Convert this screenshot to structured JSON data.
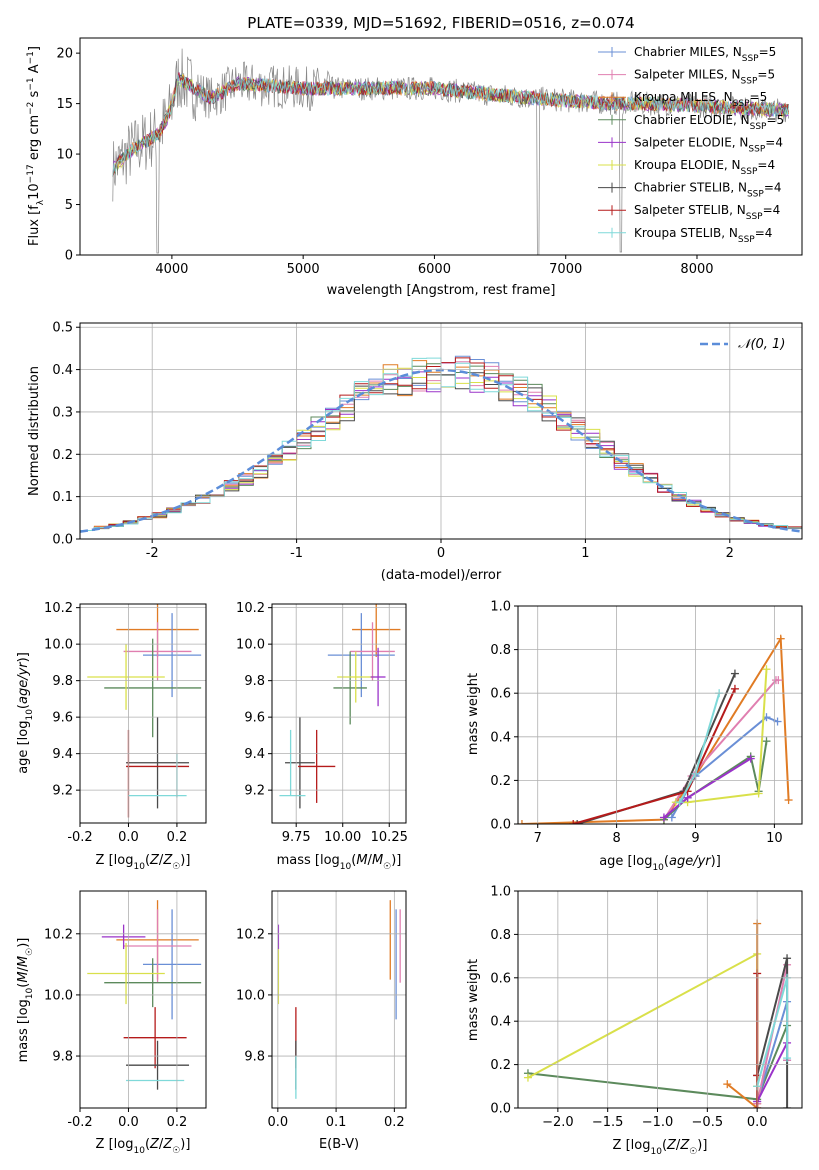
{
  "colors": {
    "Chabrier MILES": "#6a8fd6",
    "Salpeter MILES": "#e07fb0",
    "Kroupa MILES": "#e07b24",
    "Chabrier ELODIE": "#5c8a5c",
    "Salpeter ELODIE": "#9a33c9",
    "Kroupa ELODIE": "#d9e04a",
    "Chabrier STELIB": "#4a4a4a",
    "Salpeter STELIB": "#b51b1b",
    "Kroupa STELIB": "#7fd9d9"
  },
  "chart_data": [
    {
      "id": "spectrum",
      "type": "line",
      "title": "PLATE=0339, MJD=51692, FIBERID=0516, z=0.074",
      "xlabel": "wavelength [Angstrom, rest frame]",
      "ylabel": "Flux [fλ10⁻¹⁷ erg cm⁻² s⁻¹ A⁻¹]",
      "xlim": [
        3300,
        8800
      ],
      "ylim": [
        0,
        21.5
      ],
      "xticks": [
        4000,
        5000,
        6000,
        7000,
        8000
      ],
      "yticks": [
        0,
        5,
        10,
        15,
        20
      ],
      "data_color": "#888888",
      "series_names": [
        "Chabrier MILES, N_SSP=5",
        "Salpeter MILES, N_SSP=5",
        "Kroupa MILES, N_SSP=5",
        "Chabrier ELODIE, N_SSP=5",
        "Salpeter ELODIE, N_SSP=4",
        "Kroupa ELODIE, N_SSP=4",
        "Chabrier STELIB, N_SSP=4",
        "Salpeter STELIB, N_SSP=4",
        "Kroupa STELIB, N_SSP=4"
      ],
      "continuum": {
        "x": [
          3550,
          3700,
          3900,
          3980,
          4050,
          4300,
          4500,
          5000,
          5500,
          6000,
          6500,
          7000,
          7400,
          7600,
          8000,
          8400,
          8800
        ],
        "y": [
          8.5,
          10.5,
          12.0,
          14.0,
          17.5,
          15.5,
          17.0,
          16.5,
          16.5,
          16.5,
          15.8,
          15.3,
          15.0,
          15.0,
          14.8,
          14.5,
          14.3
        ]
      },
      "legend_location": "upper right"
    },
    {
      "id": "residuals",
      "type": "histogram",
      "xlabel": "(data-model)/error",
      "ylabel": "Normed distribution",
      "xlim": [
        -2.5,
        2.5
      ],
      "ylim": [
        0,
        0.51
      ],
      "xticks": [
        -2,
        -1,
        0,
        1,
        2
      ],
      "yticks": [
        0.0,
        0.1,
        0.2,
        0.3,
        0.4,
        0.5
      ],
      "grid": true,
      "reference_curve": "normal(0,1)",
      "legend": "𝒩(0, 1)",
      "envelope": {
        "x": [
          -2.5,
          -2.2,
          -1.9,
          -1.6,
          -1.3,
          -1.0,
          -0.7,
          -0.4,
          -0.1,
          0.2,
          0.5,
          0.8,
          1.1,
          1.4,
          1.7,
          2.0,
          2.3,
          2.5
        ],
        "y": [
          0.02,
          0.035,
          0.06,
          0.1,
          0.15,
          0.22,
          0.3,
          0.37,
          0.39,
          0.39,
          0.36,
          0.3,
          0.22,
          0.15,
          0.09,
          0.05,
          0.03,
          0.025
        ]
      }
    },
    {
      "id": "age-vs-Z",
      "type": "errorbar",
      "xlabel": "Z [log10(Z/Z☉)]",
      "ylabel": "age  [log10(age/yr)]",
      "xlim": [
        -0.2,
        0.32
      ],
      "ylim": [
        9.02,
        10.22
      ],
      "xticks": [
        -0.2,
        0.0,
        0.2
      ],
      "yticks": [
        9.2,
        9.4,
        9.6,
        9.8,
        10.0,
        10.2
      ],
      "points": [
        {
          "model": "Kroupa MILES",
          "x": 0.12,
          "xerr": 0.17,
          "y": 10.08,
          "yerr": 0.15
        },
        {
          "model": "Chabrier MILES",
          "x": 0.18,
          "xerr": 0.12,
          "y": 9.94,
          "yerr": 0.23
        },
        {
          "model": "Salpeter MILES",
          "x": 0.12,
          "xerr": 0.14,
          "y": 9.96,
          "yerr": 0.16
        },
        {
          "model": "Chabrier ELODIE",
          "x": 0.1,
          "xerr": 0.2,
          "y": 9.76,
          "yerr": 0.27
        },
        {
          "model": "Kroupa ELODIE",
          "x": -0.01,
          "xerr": 0.16,
          "y": 9.82,
          "yerr": 0.18
        },
        {
          "model": "Chabrier STELIB",
          "x": 0.12,
          "xerr": 0.13,
          "y": 9.35,
          "yerr": 0.25
        },
        {
          "model": "Salpeter STELIB",
          "x": 0.0,
          "xerr": 0.0,
          "y": 9.29,
          "yerr": 0.24
        },
        {
          "model": "Salpeter STELIB",
          "x": 0.12,
          "xerr": 0.13,
          "y": 9.33,
          "yerr": 0.0
        },
        {
          "model": "Kroupa STELIB",
          "x": 0.12,
          "xerr": 0.12,
          "y": 9.17,
          "yerr": 0.0
        },
        {
          "model": "Kroupa STELIB",
          "x": 0.2,
          "xerr": 0.0,
          "y": 9.28,
          "yerr": 0.12
        }
      ]
    },
    {
      "id": "age-vs-mass",
      "type": "errorbar",
      "xlabel": "mass [log10(M/M☉)]",
      "xlim": [
        9.62,
        10.34
      ],
      "ylim": [
        9.02,
        10.22
      ],
      "xticks": [
        9.75,
        10.0,
        10.25
      ],
      "xticklabels": [
        "9.75",
        "10.00",
        "10.25"
      ],
      "yticks": [
        9.2,
        9.4,
        9.6,
        9.8,
        10.0,
        10.2
      ],
      "points": [
        {
          "model": "Kroupa MILES",
          "x": 10.18,
          "xerr": 0.13,
          "y": 10.08,
          "yerr": 0.15
        },
        {
          "model": "Chabrier MILES",
          "x": 10.1,
          "xerr": 0.18,
          "y": 9.94,
          "yerr": 0.23
        },
        {
          "model": "Salpeter MILES",
          "x": 10.16,
          "xerr": 0.12,
          "y": 9.96,
          "yerr": 0.16
        },
        {
          "model": "Chabrier ELODIE",
          "x": 10.04,
          "xerr": 0.09,
          "y": 9.76,
          "yerr": 0.2
        },
        {
          "model": "Kroupa ELODIE",
          "x": 10.07,
          "xerr": 0.1,
          "y": 9.82,
          "yerr": 0.14
        },
        {
          "model": "Salpeter ELODIE",
          "x": 10.19,
          "xerr": 0.04,
          "y": 9.82,
          "yerr": 0.16
        },
        {
          "model": "Chabrier STELIB",
          "x": 9.77,
          "xerr": 0.08,
          "y": 9.35,
          "yerr": 0.25
        },
        {
          "model": "Salpeter STELIB",
          "x": 9.86,
          "xerr": 0.1,
          "y": 9.33,
          "yerr": 0.2
        },
        {
          "model": "Kroupa STELIB",
          "x": 9.73,
          "xerr": 0.07,
          "y": 9.17,
          "yerr": 0.0
        },
        {
          "model": "Kroupa STELIB",
          "x": 9.72,
          "xerr": 0.0,
          "y": 9.35,
          "yerr": 0.18
        }
      ]
    },
    {
      "id": "weight-vs-age",
      "type": "line",
      "xlabel": "age  [log10(age/yr)]",
      "ylabel": "mass weight",
      "xlim": [
        6.75,
        10.35
      ],
      "ylim": [
        0,
        1.0
      ],
      "xticks": [
        7,
        8,
        9,
        10
      ],
      "yticks": [
        0.0,
        0.2,
        0.4,
        0.6,
        0.8,
        1.0
      ],
      "grid": true,
      "series": [
        {
          "model": "Kroupa MILES",
          "x": [
            6.8,
            8.6,
            9.0,
            10.08,
            10.18
          ],
          "y": [
            0.0,
            0.02,
            0.22,
            0.85,
            0.11
          ]
        },
        {
          "model": "Chabrier MILES",
          "x": [
            8.7,
            9.0,
            9.9,
            10.04
          ],
          "y": [
            0.03,
            0.22,
            0.49,
            0.47
          ]
        },
        {
          "model": "Salpeter MILES",
          "x": [
            8.6,
            8.95,
            10.02,
            10.05
          ],
          "y": [
            0.02,
            0.22,
            0.66,
            0.66
          ]
        },
        {
          "model": "Chabrier ELODIE",
          "x": [
            8.6,
            8.9,
            9.7,
            9.8,
            9.9
          ],
          "y": [
            0.02,
            0.12,
            0.31,
            0.15,
            0.38
          ]
        },
        {
          "model": "Kroupa ELODIE",
          "x": [
            8.75,
            8.9,
            9.8,
            9.9
          ],
          "y": [
            0.1,
            0.1,
            0.14,
            0.71
          ]
        },
        {
          "model": "Salpeter ELODIE",
          "x": [
            8.6,
            8.9,
            9.7
          ],
          "y": [
            0.03,
            0.12,
            0.3
          ]
        },
        {
          "model": "Chabrier STELIB",
          "x": [
            7.5,
            8.85,
            9.5
          ],
          "y": [
            0.0,
            0.15,
            0.69
          ]
        },
        {
          "model": "Salpeter STELIB",
          "x": [
            7.45,
            8.9,
            9.5
          ],
          "y": [
            0.0,
            0.15,
            0.62
          ]
        },
        {
          "model": "Kroupa STELIB",
          "x": [
            8.8,
            9.0,
            9.3
          ],
          "y": [
            0.1,
            0.23,
            0.6
          ]
        }
      ]
    },
    {
      "id": "mass-vs-Z",
      "type": "errorbar",
      "xlabel": "Z [log10(Z/Z☉)]",
      "ylabel": "mass [log10(M/M☉)]",
      "xlim": [
        -0.2,
        0.32
      ],
      "ylim": [
        9.63,
        10.34
      ],
      "xticks": [
        -0.2,
        0.0,
        0.2
      ],
      "yticks": [
        9.8,
        10.0,
        10.2
      ],
      "points": [
        {
          "model": "Kroupa MILES",
          "x": 0.12,
          "xerr": 0.17,
          "y": 10.18,
          "yerr": 0.13
        },
        {
          "model": "Chabrier MILES",
          "x": 0.18,
          "xerr": 0.12,
          "y": 10.1,
          "yerr": 0.18
        },
        {
          "model": "Salpeter MILES",
          "x": 0.12,
          "xerr": 0.14,
          "y": 10.16,
          "yerr": 0.12
        },
        {
          "model": "Chabrier ELODIE",
          "x": 0.1,
          "xerr": 0.2,
          "y": 10.04,
          "yerr": 0.08
        },
        {
          "model": "Kroupa ELODIE",
          "x": -0.01,
          "xerr": 0.16,
          "y": 10.07,
          "yerr": 0.1
        },
        {
          "model": "Salpeter ELODIE",
          "x": -0.02,
          "xerr": 0.09,
          "y": 10.19,
          "yerr": 0.04
        },
        {
          "model": "Salpeter STELIB",
          "x": 0.11,
          "xerr": 0.13,
          "y": 9.86,
          "yerr": 0.1
        },
        {
          "model": "Chabrier STELIB",
          "x": 0.12,
          "xerr": 0.13,
          "y": 9.77,
          "yerr": 0.08
        },
        {
          "model": "Kroupa STELIB",
          "x": 0.11,
          "xerr": 0.12,
          "y": 9.72,
          "yerr": 0.0
        }
      ]
    },
    {
      "id": "mass-vs-EBV",
      "type": "errorbar",
      "xlabel": "E(B-V)",
      "xlim": [
        -0.01,
        0.22
      ],
      "ylim": [
        9.63,
        10.34
      ],
      "xticks": [
        0.0,
        0.1,
        0.2
      ],
      "yticks": [
        9.8,
        10.0,
        10.2
      ],
      "points": [
        {
          "model": "Kroupa ELODIE",
          "x": 0.001,
          "xerr": 0.0,
          "y": 10.07,
          "yerr": 0.1
        },
        {
          "model": "Salpeter ELODIE",
          "x": 0.001,
          "xerr": 0.0,
          "y": 10.19,
          "yerr": 0.04
        },
        {
          "model": "Salpeter STELIB",
          "x": 0.031,
          "xerr": 0.0,
          "y": 9.86,
          "yerr": 0.1
        },
        {
          "model": "Chabrier STELIB",
          "x": 0.031,
          "xerr": 0.0,
          "y": 9.77,
          "yerr": 0.08
        },
        {
          "model": "Kroupa STELIB",
          "x": 0.031,
          "xerr": 0.0,
          "y": 9.73,
          "yerr": 0.07
        },
        {
          "model": "Kroupa MILES",
          "x": 0.193,
          "xerr": 0.0,
          "y": 10.18,
          "yerr": 0.13
        },
        {
          "model": "Chabrier MILES",
          "x": 0.203,
          "xerr": 0.0,
          "y": 10.1,
          "yerr": 0.18
        },
        {
          "model": "Salpeter MILES",
          "x": 0.21,
          "xerr": 0.0,
          "y": 10.16,
          "yerr": 0.12
        }
      ]
    },
    {
      "id": "weight-vs-Z",
      "type": "line",
      "xlabel": "Z [log10(Z/Z☉)]",
      "ylabel": "mass weight",
      "xlim": [
        -2.4,
        0.45
      ],
      "ylim": [
        0,
        1.0
      ],
      "xticks": [
        -2.0,
        -1.5,
        -1.0,
        -0.5,
        0.0
      ],
      "xticklabels": [
        "−2.0",
        "−1.5",
        "−1.0",
        "−0.5",
        "0.0"
      ],
      "yticks": [
        0.0,
        0.2,
        0.4,
        0.6,
        0.8,
        1.0
      ],
      "grid": true,
      "series": [
        {
          "model": "Chabrier ELODIE",
          "x": [
            -2.3,
            0.0,
            0.3
          ],
          "y": [
            0.16,
            0.04,
            0.38
          ]
        },
        {
          "model": "Kroupa ELODIE",
          "x": [
            -2.3,
            0.0,
            0.0
          ],
          "y": [
            0.14,
            0.71,
            0.1
          ]
        },
        {
          "model": "Kroupa MILES",
          "x": [
            -0.3,
            0.0,
            0.0,
            0.0
          ],
          "y": [
            0.11,
            0.0,
            0.85,
            0.02
          ]
        },
        {
          "model": "Chabrier MILES",
          "x": [
            0.0,
            0.3,
            0.3
          ],
          "y": [
            0.03,
            0.49,
            0.22
          ]
        },
        {
          "model": "Salpeter MILES",
          "x": [
            0.0,
            0.3,
            0.3
          ],
          "y": [
            0.02,
            0.66,
            0.22
          ]
        },
        {
          "model": "Salpeter ELODIE",
          "x": [
            0.0,
            0.3
          ],
          "y": [
            0.03,
            0.3
          ]
        },
        {
          "model": "Chabrier STELIB",
          "x": [
            0.0,
            0.3,
            0.3
          ],
          "y": [
            0.15,
            0.69,
            0.0
          ]
        },
        {
          "model": "Salpeter STELIB",
          "x": [
            0.0,
            0.0,
            0.0
          ],
          "y": [
            0.0,
            0.62,
            0.15
          ]
        },
        {
          "model": "Kroupa STELIB",
          "x": [
            0.0,
            0.3,
            0.3
          ],
          "y": [
            0.1,
            0.6,
            0.23
          ]
        }
      ]
    }
  ]
}
